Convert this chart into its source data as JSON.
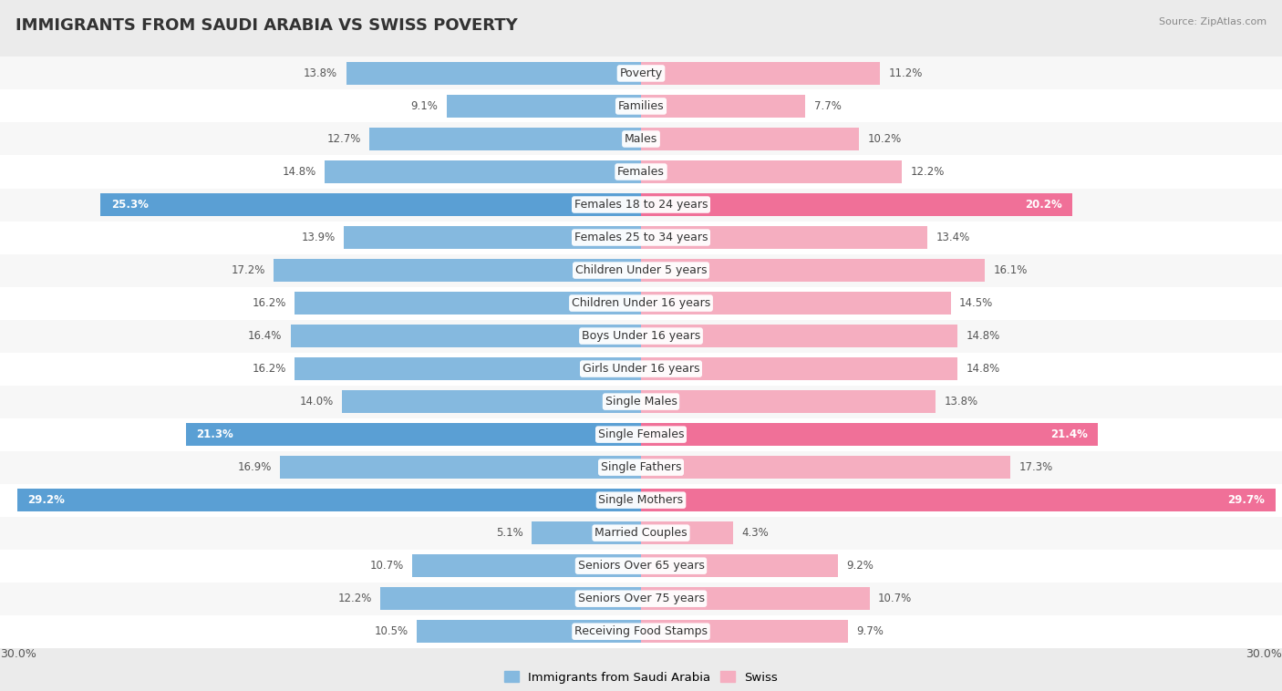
{
  "title": "IMMIGRANTS FROM SAUDI ARABIA VS SWISS POVERTY",
  "source": "Source: ZipAtlas.com",
  "categories": [
    "Poverty",
    "Families",
    "Males",
    "Females",
    "Females 18 to 24 years",
    "Females 25 to 34 years",
    "Children Under 5 years",
    "Children Under 16 years",
    "Boys Under 16 years",
    "Girls Under 16 years",
    "Single Males",
    "Single Females",
    "Single Fathers",
    "Single Mothers",
    "Married Couples",
    "Seniors Over 65 years",
    "Seniors Over 75 years",
    "Receiving Food Stamps"
  ],
  "left_values": [
    13.8,
    9.1,
    12.7,
    14.8,
    25.3,
    13.9,
    17.2,
    16.2,
    16.4,
    16.2,
    14.0,
    21.3,
    16.9,
    29.2,
    5.1,
    10.7,
    12.2,
    10.5
  ],
  "right_values": [
    11.2,
    7.7,
    10.2,
    12.2,
    20.2,
    13.4,
    16.1,
    14.5,
    14.8,
    14.8,
    13.8,
    21.4,
    17.3,
    29.7,
    4.3,
    9.2,
    10.7,
    9.7
  ],
  "left_color_normal": "#85b9df",
  "left_color_highlight": "#5a9fd4",
  "right_color_normal": "#f5aec0",
  "right_color_highlight": "#f07098",
  "highlight_threshold": 20.0,
  "xlim": 30.0,
  "legend_left": "Immigrants from Saudi Arabia",
  "legend_right": "Swiss",
  "bg_color": "#ebebeb",
  "row_bg_even": "#f7f7f7",
  "row_bg_odd": "#ffffff",
  "label_fontsize": 9.0,
  "value_fontsize": 8.5,
  "title_fontsize": 13
}
